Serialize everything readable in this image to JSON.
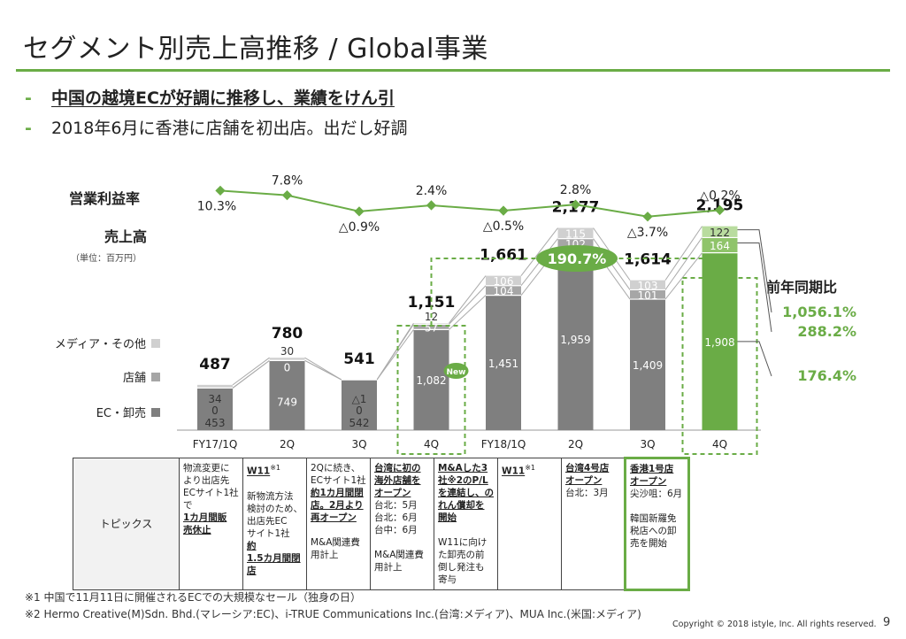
{
  "title": "セグメント別売上高推移 / Global事業",
  "bullets": [
    {
      "dash": "-",
      "text": "中国の越境ECが好調に推移し、業績をけん引"
    },
    {
      "dash": "-",
      "text": "2018年6月に香港に店舗を初出店。出だし好調"
    }
  ],
  "labels": {
    "margin_title": "営業利益率",
    "sales_title": "売上高",
    "unit": "（単位：百万円）",
    "yoy_title": "前年同期比",
    "growth_badge": "190.7%",
    "new_badge": "New"
  },
  "colors": {
    "accent": "#6aac46",
    "ec": "#7f7f7f",
    "store": "#a6a6a6",
    "media": "#d0d0d0",
    "highlight_bar": "#6aac46"
  },
  "chart_data": {
    "type": "bar",
    "categories": [
      "FY17/1Q",
      "2Q",
      "3Q",
      "4Q",
      "FY18/1Q",
      "2Q",
      "3Q",
      "4Q"
    ],
    "series": [
      {
        "name": "EC・卸売",
        "values": [
          453,
          749,
          542,
          1082,
          1451,
          1959,
          1409,
          1908
        ],
        "labels": [
          "453",
          "749",
          "542",
          "1,082",
          "1,451",
          "1,959",
          "1,409",
          "1,908"
        ]
      },
      {
        "name": "店舗",
        "values": [
          0,
          0,
          0,
          57,
          104,
          102,
          101,
          164
        ],
        "labels": [
          "0",
          "0",
          "0",
          "57",
          "104",
          "102",
          "101",
          "164"
        ]
      },
      {
        "name": "メディア・その他",
        "values": [
          34,
          30,
          -1,
          12,
          106,
          115,
          103,
          122
        ],
        "labels": [
          "34",
          "30",
          "△1",
          "12",
          "106",
          "115",
          "103",
          "122"
        ]
      }
    ],
    "totals": [
      "487",
      "780",
      "541",
      "1,151",
      "1,661",
      "2,177",
      "1,614",
      "2,195"
    ],
    "total_values": [
      487,
      780,
      541,
      1151,
      1661,
      2177,
      1614,
      2195
    ],
    "operating_margin": {
      "values": [
        10.3,
        7.8,
        -0.9,
        2.4,
        -0.5,
        2.8,
        -3.7,
        -0.2
      ],
      "labels": [
        "10.3%",
        "7.8%",
        "△0.9%",
        "2.4%",
        "△0.5%",
        "2.8%",
        "△3.7%",
        "△0.2%"
      ]
    },
    "yoy": [
      {
        "series": "メディア・その他",
        "label": "1,056.1%"
      },
      {
        "series": "店舗",
        "label": "288.2%"
      },
      {
        "series": "EC・卸売",
        "label": "176.4%"
      }
    ]
  },
  "topics": {
    "header": "トピックス",
    "columns": [
      [
        {
          "t": "物流変更に"
        },
        {
          "t": "より出店先"
        },
        {
          "t": "ECサイト1社"
        },
        {
          "t": "で"
        },
        {
          "t": "1カ月間販",
          "b": true
        },
        {
          "t": "売休止",
          "b": true
        }
      ],
      [
        {
          "t": "W11",
          "b": true,
          "sup": "※1"
        },
        {
          "t": ""
        },
        {
          "t": "新物流方法"
        },
        {
          "t": "検討のため、"
        },
        {
          "t": "出店先EC"
        },
        {
          "t": "サイト1社"
        },
        {
          "t": "約",
          "b": true
        },
        {
          "t": "1.5カ月間閉",
          "b": true
        },
        {
          "t": "店",
          "b": true
        }
      ],
      [
        {
          "t": "2Qに続き、"
        },
        {
          "t": "ECサイト1社"
        },
        {
          "t": "約1カ月間閉",
          "b": true
        },
        {
          "t": "店。2月より",
          "b": true
        },
        {
          "t": "再オープン",
          "b": true
        },
        {
          "t": ""
        },
        {
          "t": "M&A関連費"
        },
        {
          "t": "用計上"
        }
      ],
      [
        {
          "t": "台湾に初の",
          "b": true
        },
        {
          "t": "海外店舗を",
          "b": true
        },
        {
          "t": "オープン",
          "b": true
        },
        {
          "t": "台北：5月"
        },
        {
          "t": "台北：6月"
        },
        {
          "t": "台中：6月"
        },
        {
          "t": ""
        },
        {
          "t": "M&A関連費"
        },
        {
          "t": "用計上"
        }
      ],
      [
        {
          "t": "M&Aした3",
          "b": true
        },
        {
          "t": "社※2のP/L",
          "b": true
        },
        {
          "t": "を連結し、の",
          "b": true
        },
        {
          "t": "れん償却を",
          "b": true
        },
        {
          "t": "開始",
          "b": true
        },
        {
          "t": ""
        },
        {
          "t": "W11に向け"
        },
        {
          "t": "た卸売の前"
        },
        {
          "t": "倒し発注も"
        },
        {
          "t": "寄与"
        }
      ],
      [
        {
          "t": "W11",
          "b": true,
          "sup": "※1"
        }
      ],
      [
        {
          "t": "台湾4号店",
          "b": true
        },
        {
          "t": "オープン",
          "b": true
        },
        {
          "t": "台北：3月"
        }
      ],
      [
        {
          "t": "香港1号店",
          "b": true
        },
        {
          "t": "オープン",
          "b": true
        },
        {
          "t": "尖沙咀：6月"
        },
        {
          "t": ""
        },
        {
          "t": "韓国新羅免"
        },
        {
          "t": "税店への卸"
        },
        {
          "t": "売を開始"
        }
      ]
    ]
  },
  "footnotes": [
    "※1  中国で11月11日に開催されるECでの大規模なセール（独身の日）",
    "※2  Hermo Creative(M)Sdn. Bhd.(マレーシア:EC)、i-TRUE Communications Inc.(台湾:メディア)、MUA Inc.(米国:メディア)"
  ],
  "copyright": "Copyright © 2018 istyle, Inc. All rights reserved.",
  "page_number": "9"
}
